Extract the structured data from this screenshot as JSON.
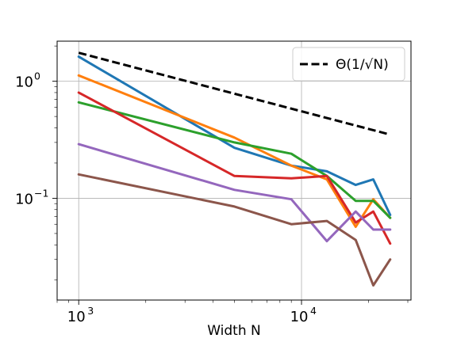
{
  "chart_data": {
    "type": "line",
    "xlabel": "Width N",
    "ylabel": "",
    "xscale": "log",
    "yscale": "log",
    "xlim": [
      800,
      31000
    ],
    "ylim": [
      0.0135,
      2.2
    ],
    "grid": true,
    "x_ticks": [
      {
        "value": 1000,
        "label": "10",
        "exp": "3"
      },
      {
        "value": 10000,
        "label": "10",
        "exp": "4"
      }
    ],
    "y_ticks": [
      {
        "value": 0.1,
        "label": "10",
        "exp": "−1"
      },
      {
        "value": 1,
        "label": "10",
        "exp": "0"
      }
    ],
    "legend": {
      "position": "upper right",
      "entries": [
        {
          "text": "Θ(1/√N)",
          "color": "#000000",
          "style": "dashed"
        }
      ]
    },
    "reference": {
      "label": "Θ(1/√N)",
      "style": "dashed",
      "color": "#000000",
      "x": [
        1000,
        25000
      ],
      "y": [
        1.75,
        0.35
      ]
    },
    "series": [
      {
        "color": "#1f77b4",
        "x": [
          1000,
          5000,
          9000,
          13000,
          17500,
          21000,
          25000
        ],
        "y": [
          1.62,
          0.27,
          0.19,
          0.17,
          0.13,
          0.145,
          0.072
        ]
      },
      {
        "color": "#ff7f0e",
        "x": [
          1000,
          5000,
          9000,
          13000,
          17500,
          21000,
          25000
        ],
        "y": [
          1.12,
          0.33,
          0.19,
          0.145,
          0.057,
          0.098,
          0.068
        ]
      },
      {
        "color": "#2ca02c",
        "x": [
          1000,
          5000,
          9000,
          13000,
          17500,
          21000,
          25000
        ],
        "y": [
          0.66,
          0.3,
          0.24,
          0.155,
          0.095,
          0.095,
          0.068
        ]
      },
      {
        "color": "#d62728",
        "x": [
          1000,
          5000,
          9000,
          13000,
          17500,
          21000,
          25000
        ],
        "y": [
          0.8,
          0.155,
          0.148,
          0.155,
          0.062,
          0.077,
          0.041
        ]
      },
      {
        "color": "#9467bd",
        "x": [
          1000,
          5000,
          9000,
          13000,
          17500,
          21000,
          25000
        ],
        "y": [
          0.29,
          0.118,
          0.098,
          0.043,
          0.077,
          0.054,
          0.054
        ]
      },
      {
        "color": "#8c564b",
        "x": [
          1000,
          5000,
          9000,
          13000,
          17500,
          21000,
          25000
        ],
        "y": [
          0.16,
          0.085,
          0.06,
          0.064,
          0.044,
          0.018,
          0.03
        ]
      }
    ]
  }
}
